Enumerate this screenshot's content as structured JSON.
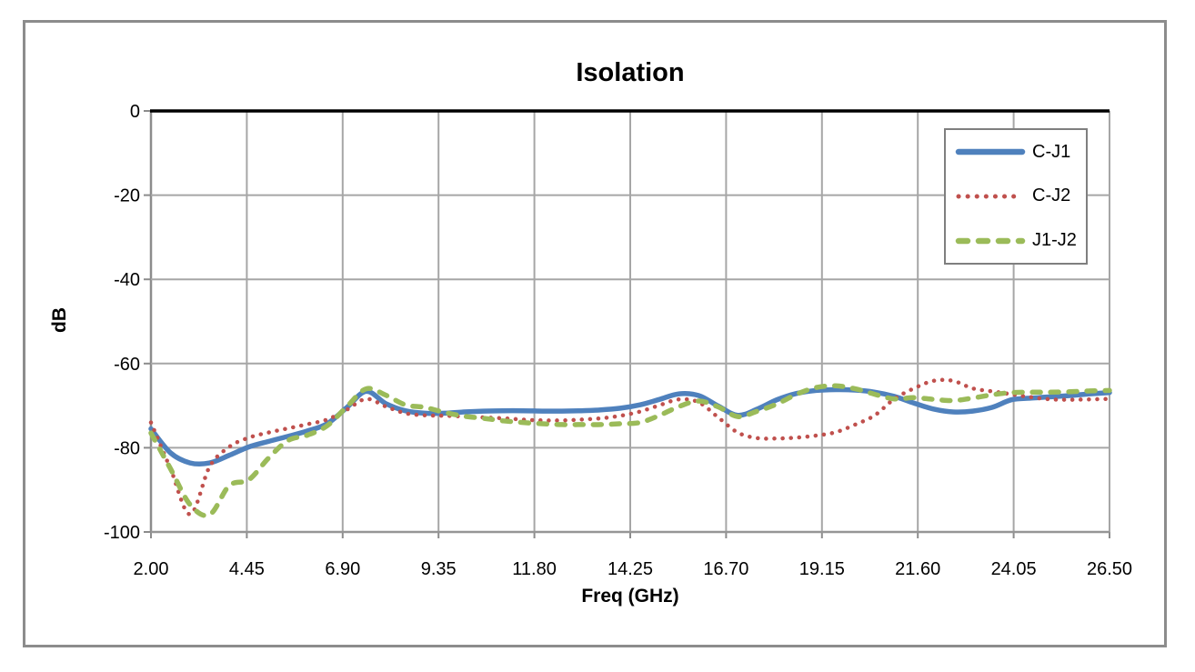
{
  "chart_data": {
    "type": "line",
    "title": "Isolation",
    "xlabel": "Freq (GHz)",
    "ylabel": "dB",
    "xlim": [
      2.0,
      26.5
    ],
    "ylim": [
      -100,
      0
    ],
    "grid": true,
    "legend_position": "top-right-inside",
    "x_tick_values": [
      2.0,
      4.45,
      6.9,
      9.35,
      11.8,
      14.25,
      16.7,
      19.15,
      21.6,
      24.05,
      26.5
    ],
    "x_tick_labels": [
      "2.00",
      "4.45",
      "6.90",
      "9.35",
      "11.80",
      "14.25",
      "16.70",
      "19.15",
      "21.60",
      "24.05",
      "26.50"
    ],
    "y_tick_values": [
      0,
      -20,
      -40,
      -60,
      -80,
      -100
    ],
    "y_tick_labels": [
      "0",
      "-20",
      "-40",
      "-60",
      "-80",
      "-100"
    ],
    "x": [
      2.0,
      2.5,
      3.0,
      3.5,
      4.0,
      4.5,
      5.0,
      5.5,
      6.0,
      6.5,
      7.0,
      7.5,
      8.0,
      8.5,
      9.0,
      9.5,
      10.0,
      10.5,
      11.0,
      11.5,
      12.0,
      12.5,
      13.0,
      13.5,
      14.0,
      14.5,
      15.0,
      15.5,
      16.0,
      16.5,
      17.0,
      17.5,
      18.0,
      18.5,
      19.0,
      19.5,
      20.0,
      20.5,
      21.0,
      21.5,
      22.0,
      22.5,
      23.0,
      23.5,
      24.0,
      24.5,
      25.0,
      25.5,
      26.0,
      26.5
    ],
    "series": [
      {
        "name": "C-J1",
        "color": "#4F81BD",
        "style": "solid",
        "width": 5.5,
        "values": [
          -75.5,
          -81.2,
          -83.6,
          -83.6,
          -81.8,
          -79.8,
          -78.5,
          -77.3,
          -76.0,
          -74.3,
          -70.5,
          -66.6,
          -69.5,
          -71.2,
          -71.8,
          -71.8,
          -71.5,
          -71.3,
          -71.2,
          -71.2,
          -71.3,
          -71.3,
          -71.2,
          -71.0,
          -70.6,
          -69.8,
          -68.5,
          -67.2,
          -67.6,
          -70.1,
          -72.3,
          -70.8,
          -68.6,
          -67.1,
          -66.4,
          -66.2,
          -66.3,
          -66.8,
          -67.8,
          -69.4,
          -70.8,
          -71.5,
          -71.3,
          -70.4,
          -68.6,
          -68.2,
          -67.9,
          -67.6,
          -67.2,
          -66.9
        ]
      },
      {
        "name": "C-J2",
        "color": "#C0504D",
        "style": "dotted",
        "width": 4.5,
        "values": [
          -74.0,
          -85.0,
          -95.8,
          -84.5,
          -79.8,
          -77.6,
          -76.4,
          -75.4,
          -74.4,
          -73.3,
          -71.0,
          -68.4,
          -70.2,
          -71.8,
          -72.3,
          -72.4,
          -72.6,
          -72.8,
          -73.0,
          -73.3,
          -73.5,
          -73.5,
          -73.3,
          -73.0,
          -72.4,
          -71.4,
          -69.9,
          -68.5,
          -69.2,
          -72.8,
          -76.4,
          -77.7,
          -77.8,
          -77.6,
          -77.1,
          -76.3,
          -74.5,
          -72.3,
          -68.4,
          -65.9,
          -64.1,
          -64.1,
          -65.9,
          -66.6,
          -67.3,
          -68.0,
          -68.5,
          -68.6,
          -68.5,
          -68.4
        ]
      },
      {
        "name": "J1-J2",
        "color": "#9BBB59",
        "style": "dashed",
        "width": 5.5,
        "values": [
          -76.5,
          -85.0,
          -93.5,
          -95.9,
          -89.0,
          -87.6,
          -82.5,
          -78.3,
          -77.0,
          -74.8,
          -70.3,
          -66.0,
          -67.5,
          -69.8,
          -70.4,
          -71.6,
          -72.5,
          -73.0,
          -73.6,
          -74.0,
          -74.3,
          -74.5,
          -74.5,
          -74.5,
          -74.3,
          -74.0,
          -72.3,
          -70.2,
          -68.9,
          -70.3,
          -72.6,
          -71.3,
          -69.6,
          -67.3,
          -65.7,
          -65.3,
          -66.0,
          -67.3,
          -68.4,
          -68.1,
          -68.5,
          -68.8,
          -68.2,
          -67.4,
          -66.9,
          -66.8,
          -66.8,
          -66.7,
          -66.5,
          -66.4
        ]
      }
    ]
  }
}
